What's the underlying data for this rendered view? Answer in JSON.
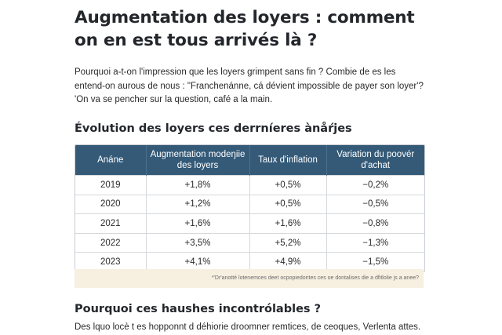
{
  "article": {
    "title": "Augmentation des loyers : comment on en est tous arrivés là ?",
    "intro_lines": [
      "Pourquoi a-t-on l'impression que les loyers grimpent sans fin ? Combie de es les",
      "entend-on aurous de nous : \"Franchenánne, cá dévient impossible de payer son loyer'?",
      "'On va se pencher sur la question, café a la main."
    ]
  },
  "section1": {
    "heading": "Évolution des loyers ces derrníeres ànåŕjes"
  },
  "table": {
    "headers": [
      "Anáne",
      "Augmentation modeŋiie des loyers",
      "Taux d'inflation",
      "Variation du poovér d'achat"
    ],
    "rows": [
      [
        "2019",
        "+1,8%",
        "+0,5%",
        "−0,2%"
      ],
      [
        "2020",
        "+1,2%",
        "+0,5%",
        "−0,5%"
      ],
      [
        "2021",
        "+1,6%",
        "+1,6%",
        "−0,8%"
      ],
      [
        "2022",
        "+3,5%",
        "+5,2%",
        "−1,3%"
      ],
      [
        "2023",
        "+4,1%",
        "+4,9%",
        "−1,5%"
      ]
    ]
  },
  "footnote": {
    "text": "*'Dr'anotté lotenemces deet ocpopiedorites ces oe dontalises die a dfitlolie js a anee?"
  },
  "section2": {
    "heading": "Pourquoi ces haushes incontrólables ?",
    "text": "Des lquo locè t es hopponnt d déhiorie droomner remtices, de ceoques, Verlenta attes."
  },
  "colors": {
    "header_bg": "#345a78",
    "footnote_bg": "#f7f0e1"
  }
}
